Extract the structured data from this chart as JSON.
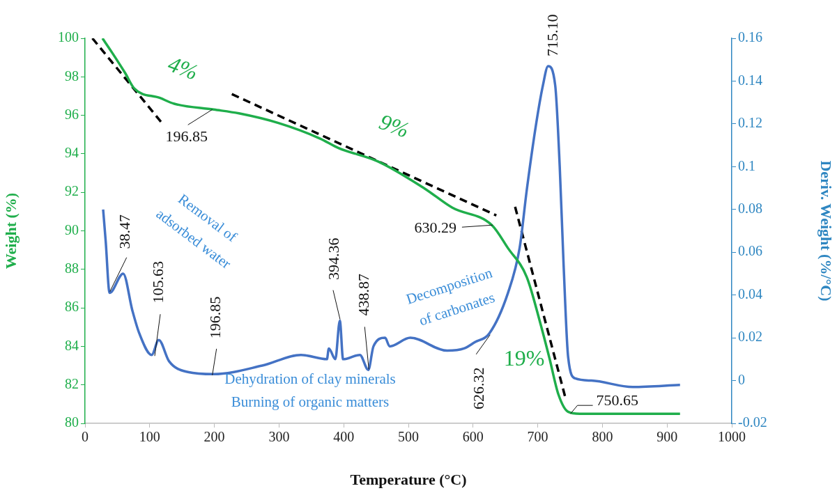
{
  "chart_data": {
    "type": "line",
    "xlabel": "Temperature (°C)",
    "ylabel": "Weight (%)",
    "y2label": "Deriv. Weight (%/°C)",
    "xlim": [
      0,
      1000
    ],
    "xticks": [
      0,
      100,
      200,
      300,
      400,
      500,
      600,
      700,
      800,
      900,
      1000
    ],
    "ylim": [
      80,
      100
    ],
    "yticks": [
      80,
      82,
      84,
      86,
      88,
      90,
      92,
      94,
      96,
      98,
      100
    ],
    "y2lim": [
      -0.02,
      0.16
    ],
    "y2ticks": [
      -0.02,
      0,
      0.02,
      0.04,
      0.06,
      0.08,
      0.1,
      0.12,
      0.14,
      0.16
    ],
    "marker": "none",
    "series": [
      {
        "color": "#1fae4b",
        "axis": "y",
        "x": [
          27,
          41,
          62,
          76,
          116,
          138,
          199,
          238,
          299,
          363,
          392,
          453,
          525,
          568,
          629,
          654,
          683,
          704,
          718,
          732,
          747,
          765,
          920
        ],
        "values": [
          100.0,
          99.3,
          98.2,
          97.4,
          96.9,
          96.6,
          96.3,
          96.1,
          95.6,
          94.8,
          94.3,
          93.6,
          92.2,
          91.2,
          90.3,
          89.1,
          87.6,
          85.2,
          83.4,
          81.5,
          80.6,
          80.5,
          80.5
        ]
      },
      {
        "color": "#4472c4",
        "axis": "y2",
        "x": [
          28,
          32,
          38,
          59,
          73,
          84,
          103,
          114,
          130,
          159,
          199,
          274,
          334,
          374,
          377,
          387,
          394,
          399,
          425,
          438,
          446,
          464,
          471,
          503,
          560,
          586,
          603,
          625,
          654,
          672,
          683,
          697,
          708,
          716,
          727,
          734,
          740,
          747,
          758,
          783,
          847,
          920
        ],
        "values": [
          0.08,
          0.065,
          0.041,
          0.05,
          0.033,
          0.022,
          0.012,
          0.019,
          0.009,
          0.004,
          0.003,
          0.007,
          0.012,
          0.01,
          0.015,
          0.01,
          0.028,
          0.01,
          0.012,
          0.005,
          0.016,
          0.02,
          0.016,
          0.02,
          0.014,
          0.015,
          0.018,
          0.022,
          0.041,
          0.062,
          0.089,
          0.119,
          0.138,
          0.147,
          0.138,
          0.1,
          0.054,
          0.011,
          0.001,
          0.0,
          -0.003,
          -0.002
        ]
      },
      {
        "type": "line",
        "color": "#000000",
        "axis": "y",
        "line_style": "dashed",
        "x": [
          11.4,
          119
        ],
        "values": [
          100.0,
          95.6
        ]
      },
      {
        "type": "line",
        "color": "#000000",
        "axis": "y",
        "line_style": "dashed",
        "x": [
          227,
          636
        ],
        "values": [
          97.1,
          90.8
        ]
      },
      {
        "type": "line",
        "color": "#000000",
        "axis": "y",
        "line_style": "dashed",
        "x": [
          665,
          743
        ],
        "values": [
          91.25,
          81.3
        ]
      }
    ],
    "annotations": [
      "4%",
      "9%",
      "19%",
      {
        "text": "196.85",
        "x": 196.85,
        "y": 96.3
      },
      {
        "text": "630.29",
        "x": 630.29,
        "y": 90.3
      },
      {
        "text": "38.47",
        "x": 38.47,
        "y": 86.7
      },
      {
        "text": "105.63",
        "x": 105.63,
        "y": 83.5
      },
      {
        "text": "196.85",
        "x": 196.85,
        "y": 82.5
      },
      {
        "text": "394.36",
        "x": 394.36,
        "y": 85.4
      },
      {
        "text": "438.87",
        "x": 438.87,
        "y": 82.7
      },
      {
        "text": "626.32",
        "x": 626.32,
        "y": 84.6
      },
      {
        "text": "715.10",
        "x": 715.1,
        "y": 98.6
      },
      {
        "text": "750.65",
        "x": 750.65,
        "y": 80.5
      },
      "Removal of",
      "adsorbed water",
      "Decomposition",
      "of carbonates",
      "Dehydration of clay minerals",
      "Burning of organic matters"
    ]
  }
}
